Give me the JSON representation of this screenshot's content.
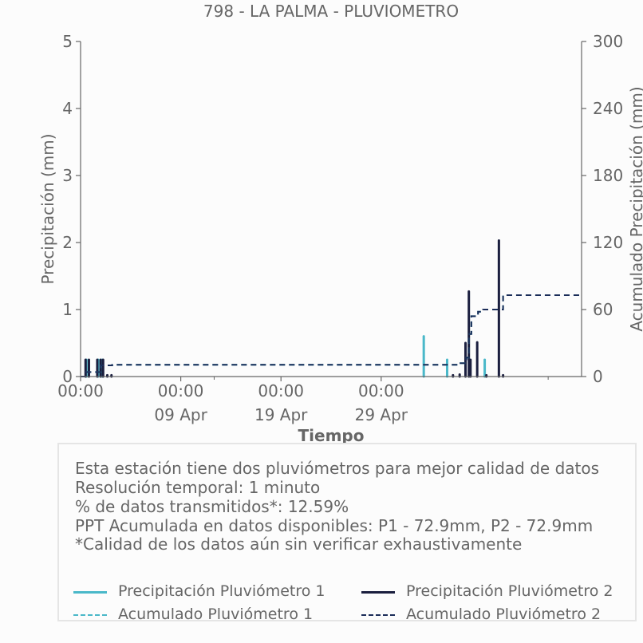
{
  "colors": {
    "p1": "#4ab8c9",
    "p2": "#1b1f3f",
    "acc1": "#4ab8c9",
    "acc2": "#1a2c58",
    "axis": "#666666",
    "text": "#666666"
  },
  "chart_data": {
    "type": "bar",
    "title": "798 - LA PALMA - PLUVIOMETRO",
    "xlabel": "Tiempo",
    "ylabel_left": "Precipitación (mm)",
    "ylabel_right": "Acumulado Precipitación (mm)",
    "ylim_left": [
      0,
      5
    ],
    "ylim_right": [
      0,
      300
    ],
    "yticks_left": [
      "0",
      "1",
      "2",
      "3",
      "4",
      "5"
    ],
    "yticks_right": [
      "0",
      "60",
      "120",
      "180",
      "240",
      "300"
    ],
    "xlim": [
      0,
      30
    ],
    "xticks": [
      {
        "x": 0.0,
        "time": "00:00",
        "date": ""
      },
      {
        "x": 6.0,
        "time": "00:00",
        "date": "09 Apr"
      },
      {
        "x": 12.0,
        "time": "00:00",
        "date": "19 Apr"
      },
      {
        "x": 18.0,
        "time": "00:00",
        "date": "29 Apr"
      }
    ],
    "minor_xticks": [
      8.0,
      28.0
    ],
    "grid": false,
    "series": [
      {
        "name": "Precipitación Pluviómetro 1",
        "kind": "bar",
        "color": "#4ab8c9",
        "x": [
          0.35,
          1.05,
          1.3,
          20.55,
          21.95,
          24.2
        ],
        "y": [
          0.25,
          0.25,
          0.25,
          0.6,
          0.25,
          0.25
        ]
      },
      {
        "name": "Precipitación Pluviómetro 2",
        "kind": "bar",
        "color": "#1b1f3f",
        "x": [
          0.3,
          0.5,
          1.0,
          1.2,
          1.35,
          1.6,
          1.85,
          22.3,
          22.7,
          23.05,
          23.25,
          23.35,
          23.75,
          24.3,
          25.05,
          25.3
        ],
        "y": [
          0.25,
          0.25,
          0.25,
          0.25,
          0.25,
          0.02,
          0.02,
          0.02,
          0.03,
          0.5,
          1.27,
          0.25,
          0.51,
          0.02,
          2.03,
          0.02
        ]
      },
      {
        "name": "Acumulado Pluviómetro 1",
        "kind": "step",
        "color": "#4ab8c9",
        "x": [
          0.0,
          0.3,
          1.2,
          1.9,
          21.9,
          22.7,
          23.1,
          23.25,
          23.4,
          23.8,
          24.1,
          24.9,
          25.3,
          30.0
        ],
        "y": [
          0,
          4,
          10,
          10.5,
          10.5,
          12,
          17,
          38,
          54,
          58,
          60,
          60,
          72.9,
          72.9
        ]
      },
      {
        "name": "Acumulado Pluviómetro 2",
        "kind": "step",
        "color": "#1a2c58",
        "x": [
          0.0,
          0.3,
          1.2,
          1.9,
          21.9,
          22.7,
          23.1,
          23.25,
          23.4,
          23.8,
          24.1,
          24.9,
          25.3,
          30.0
        ],
        "y": [
          0,
          4,
          10,
          10.5,
          10.5,
          12,
          17,
          38,
          54,
          58,
          60,
          60,
          72.9,
          72.9
        ]
      }
    ]
  },
  "info": {
    "lines": [
      "Esta estación tiene dos pluviómetros para mejor calidad de datos",
      "Resolución temporal: 1 minuto",
      "% de datos transmitidos*: 12.59%",
      "PPT Acumulada en datos disponibles: P1 - 72.9mm, P2 - 72.9mm",
      "*Calidad de los datos aún sin verificar exhaustivamente"
    ]
  },
  "legend": {
    "p1": "Precipitación Pluviómetro 1",
    "p2": "Precipitación Pluviómetro 2",
    "acc1": "Acumulado Pluviómetro 1",
    "acc2": "Acumulado Pluviómetro 2"
  }
}
